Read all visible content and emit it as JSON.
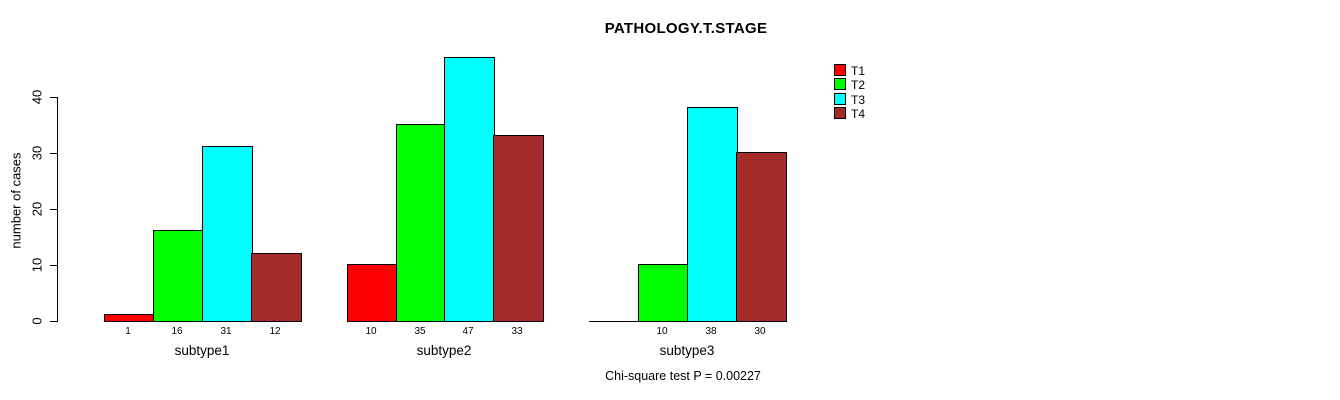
{
  "page": {
    "title": "PATHOLOGY.T.STAGE",
    "annotation": "Chi-square test P = 0.00227"
  },
  "chart_data": {
    "type": "bar",
    "title": "PATHOLOGY.T.STAGE",
    "xlabel": "",
    "ylabel": "number of cases",
    "categories": [
      "subtype1",
      "subtype2",
      "subtype3"
    ],
    "series": [
      {
        "name": "T1",
        "color": "#ff0000",
        "values": [
          1,
          10,
          0
        ]
      },
      {
        "name": "T2",
        "color": "#00ff00",
        "values": [
          16,
          35,
          10
        ]
      },
      {
        "name": "T3",
        "color": "#00ffff",
        "values": [
          31,
          47,
          38
        ]
      },
      {
        "name": "T4",
        "color": "#a52a2a",
        "values": [
          12,
          33,
          30
        ]
      }
    ],
    "bar_value_labels": [
      [
        "1",
        "10",
        ""
      ],
      [
        "16",
        "35",
        "10"
      ],
      [
        "31",
        "47",
        "38"
      ],
      [
        "12",
        "33",
        "30"
      ]
    ],
    "yticks": [
      0,
      10,
      20,
      30,
      40
    ],
    "ylim": [
      0,
      47
    ],
    "grid": false,
    "legend_position": "top-right",
    "legend_entries": [
      "T1",
      "T2",
      "T3",
      "T4"
    ],
    "annotation": "Chi-square test P = 0.00227"
  }
}
